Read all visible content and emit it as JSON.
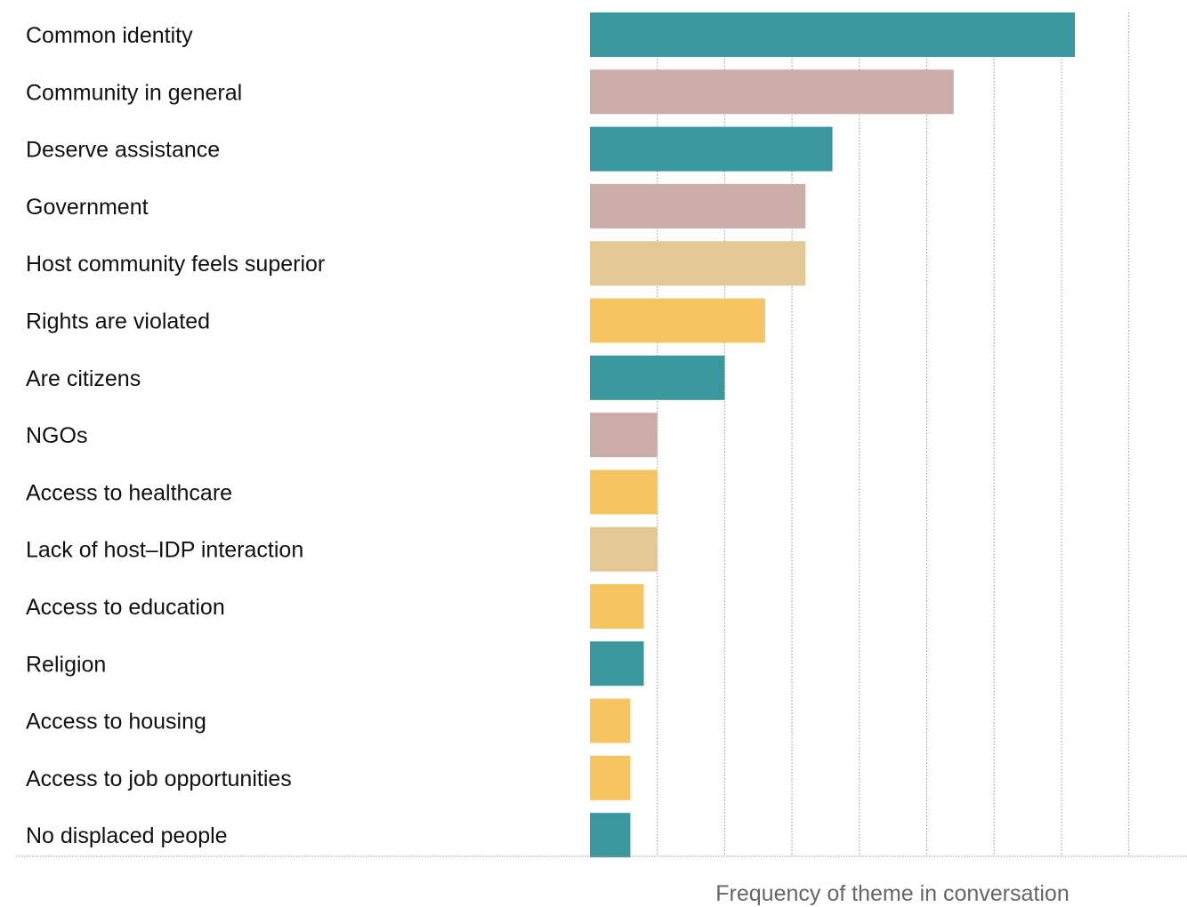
{
  "chart_data": {
    "type": "bar",
    "orientation": "horizontal",
    "xlabel": "Frequency of theme in conversation",
    "ylabel": "",
    "xlim": [
      0,
      8
    ],
    "grid": true,
    "categories": [
      "Common identity",
      "Community in general",
      "Deserve assistance",
      "Government",
      "Host community feels superior",
      "Rights are violated",
      "Are citizens",
      "NGOs",
      "Access to healthcare",
      "Lack of host–IDP interaction",
      "Access to education",
      "Religion",
      "Access to housing",
      "Access to job opportunities",
      "No displaced people"
    ],
    "values": [
      7.2,
      5.4,
      3.6,
      3.2,
      3.2,
      2.6,
      2.0,
      1.0,
      1.0,
      1.0,
      0.8,
      0.8,
      0.6,
      0.6,
      0.6
    ],
    "colors": [
      "#3a979e",
      "#caaca9",
      "#3a979e",
      "#caaca9",
      "#e3c895",
      "#f6c462",
      "#3a979e",
      "#caaca9",
      "#f6c462",
      "#e3c895",
      "#f6c462",
      "#3a979e",
      "#f6c462",
      "#f6c462",
      "#3a979e"
    ]
  }
}
